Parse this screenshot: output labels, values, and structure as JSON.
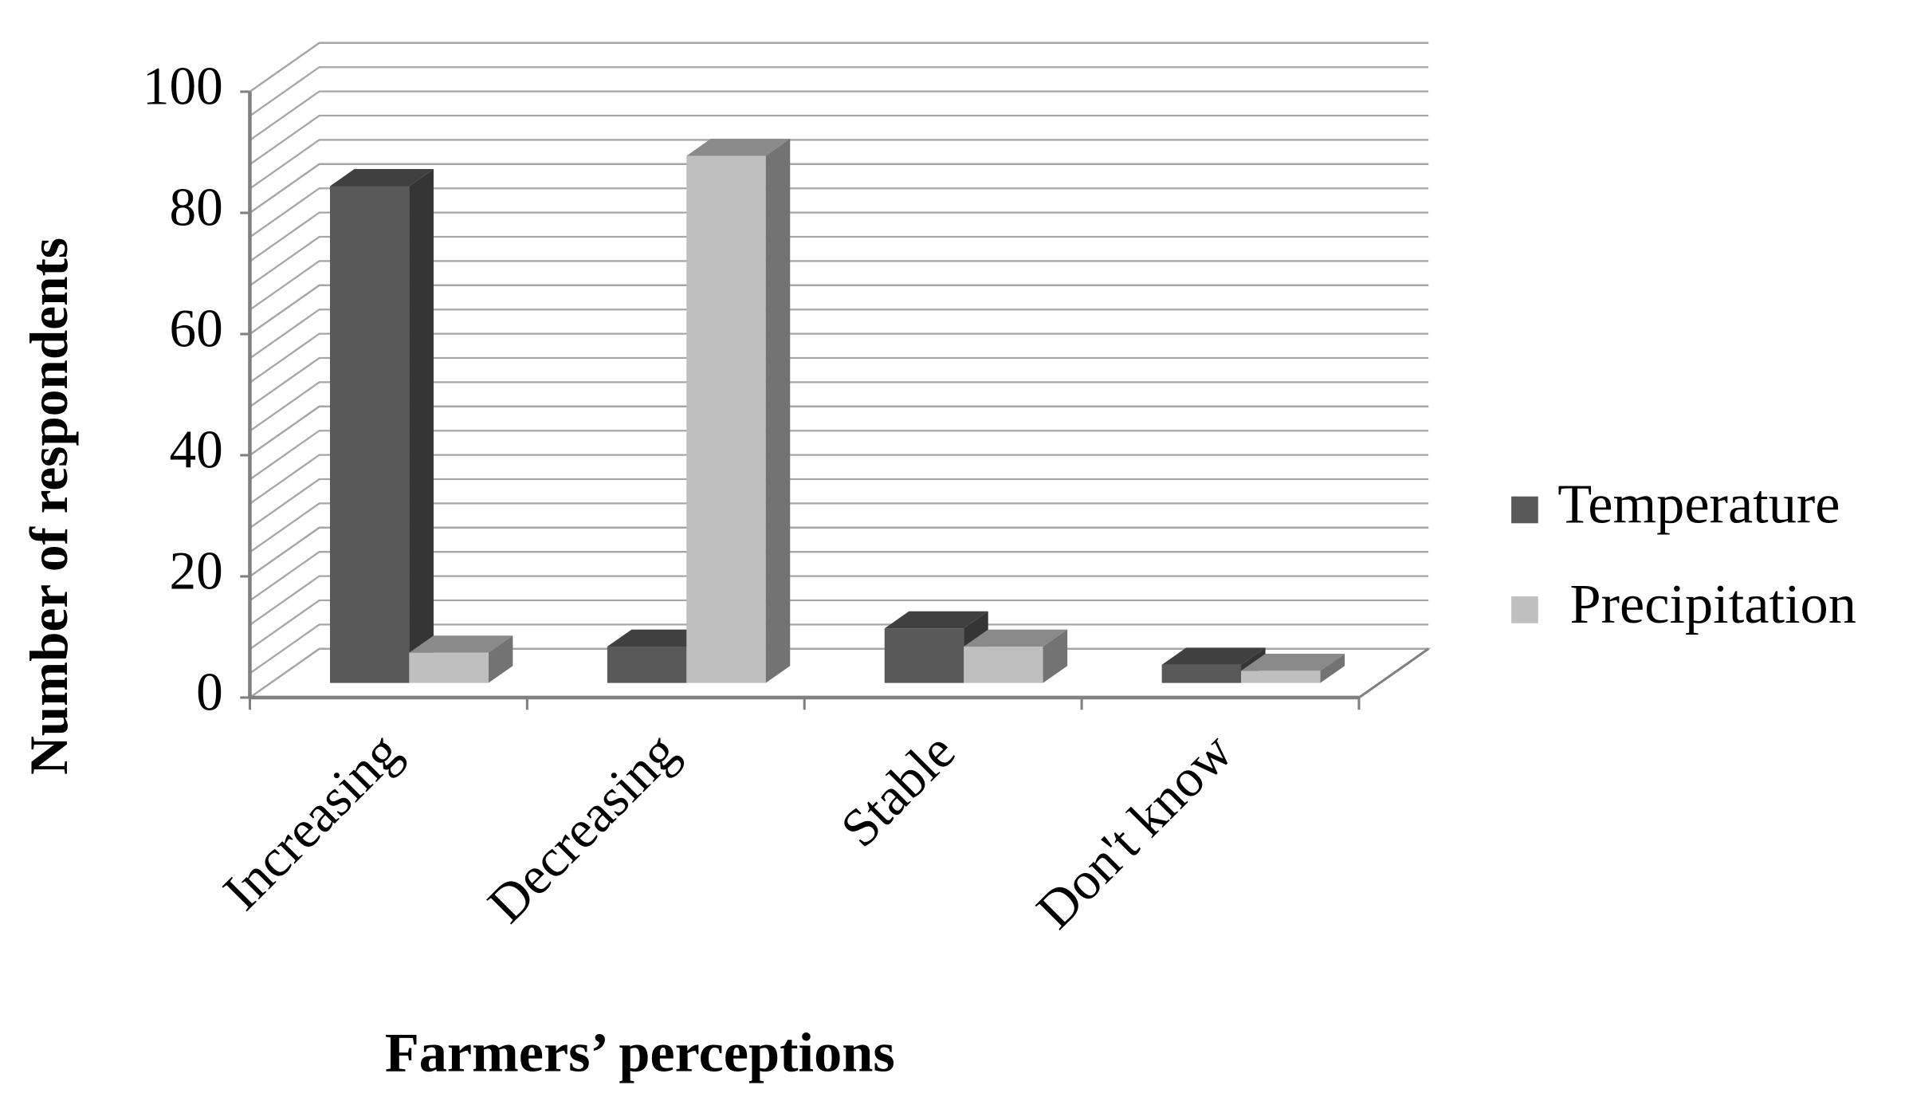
{
  "chart_data": {
    "type": "bar3d",
    "x_label": "Farmers’ perceptions",
    "y_label": "Number of respondents",
    "categories": [
      "Increasing",
      "Decreasing",
      "Stable",
      "Don't know"
    ],
    "series": [
      {
        "name": "Temperature",
        "color": "#595959",
        "values": [
          82,
          6,
          9,
          3
        ]
      },
      {
        "name": "Precipitation",
        "color": "#bfbfbf",
        "values": [
          5,
          87,
          6,
          2
        ]
      }
    ],
    "ylim": [
      0,
      100
    ],
    "yticks": [
      0,
      20,
      40,
      60,
      80,
      100
    ],
    "grid": true,
    "minor_grid_step": 4,
    "legend": "right"
  }
}
